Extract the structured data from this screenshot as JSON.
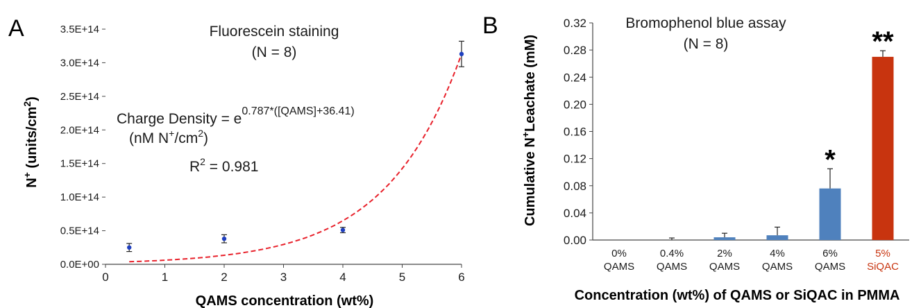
{
  "chart_data": [
    {
      "panel_label": "A",
      "type": "scatter",
      "title": "Fluorescein staining",
      "subtitle": "(N = 8)",
      "xlabel": "QAMS concentration (wt%)",
      "ylabel_main": "N",
      "ylabel_sup": "+",
      "ylabel_rest": " (units/cm",
      "ylabel_sup2": "2",
      "ylabel_end": ")",
      "xlim": [
        0,
        6
      ],
      "ylim": [
        0,
        350000000000000.0
      ],
      "xticks": [
        "0",
        "1",
        "2",
        "3",
        "4",
        "5",
        "6"
      ],
      "yticks": [
        "0.0E+00",
        "0.5E+14",
        "1.0E+14",
        "1.5E+14",
        "2.0E+14",
        "2.5E+14",
        "3.0E+14",
        "3.5E+14"
      ],
      "points": [
        {
          "x": 0.4,
          "y": 25000000000000.0,
          "err": 6000000000000.0
        },
        {
          "x": 2,
          "y": 38000000000000.0,
          "err": 6000000000000.0
        },
        {
          "x": 4,
          "y": 51000000000000.0,
          "err": 4000000000000.0
        },
        {
          "x": 6,
          "y": 313000000000000.0,
          "err": 19000000000000.0
        }
      ],
      "fit": {
        "a": 0.787,
        "b": 36.41
      },
      "annotation": {
        "eq_prefix": "Charge Density = e",
        "eq_exp": "0.787*([QAMS]+36.41)",
        "units_prefix": "(nM N",
        "units_sup": "+",
        "units_mid": "/cm",
        "units_sup2": "2",
        "units_end": ")",
        "r2_prefix": "R",
        "r2_sup": "2",
        "r2_value": " = 0.981"
      },
      "colors": {
        "points": "#1f3fbf",
        "fit": "#e8202a"
      }
    },
    {
      "panel_label": "B",
      "type": "bar",
      "title": "Bromophenol blue assay",
      "subtitle": "(N = 8)",
      "xlabel": "Concentration (wt%) of QAMS or SiQAC in PMMA",
      "ylabel_main": "Cumulative N",
      "ylabel_sup": "+",
      "ylabel_rest": "Leachate (mM)",
      "ylim": [
        0,
        0.32
      ],
      "yticks": [
        "0.00",
        "0.04",
        "0.08",
        "0.12",
        "0.16",
        "0.20",
        "0.24",
        "0.28",
        "0.32"
      ],
      "categories": [
        {
          "line1": "0%",
          "line2": "QAMS",
          "value": 0.0,
          "err": 0.0,
          "sig": "",
          "color": "#4f81bd",
          "label_color": "#1a1a1a"
        },
        {
          "line1": "0.4%",
          "line2": "QAMS",
          "value": 0.0,
          "err": 0.003,
          "sig": "",
          "color": "#4f81bd",
          "label_color": "#1a1a1a"
        },
        {
          "line1": "2%",
          "line2": "QAMS",
          "value": 0.004,
          "err": 0.006,
          "sig": "",
          "color": "#4f81bd",
          "label_color": "#1a1a1a"
        },
        {
          "line1": "4%",
          "line2": "QAMS",
          "value": 0.007,
          "err": 0.012,
          "sig": "",
          "color": "#4f81bd",
          "label_color": "#1a1a1a"
        },
        {
          "line1": "6%",
          "line2": "QAMS",
          "value": 0.076,
          "err": 0.029,
          "sig": "*",
          "color": "#4f81bd",
          "label_color": "#1a1a1a"
        },
        {
          "line1": "5%",
          "line2": "SiQAC",
          "value": 0.27,
          "err": 0.009,
          "sig": "**",
          "color": "#c8340f",
          "label_color": "#c8340f"
        }
      ]
    }
  ]
}
